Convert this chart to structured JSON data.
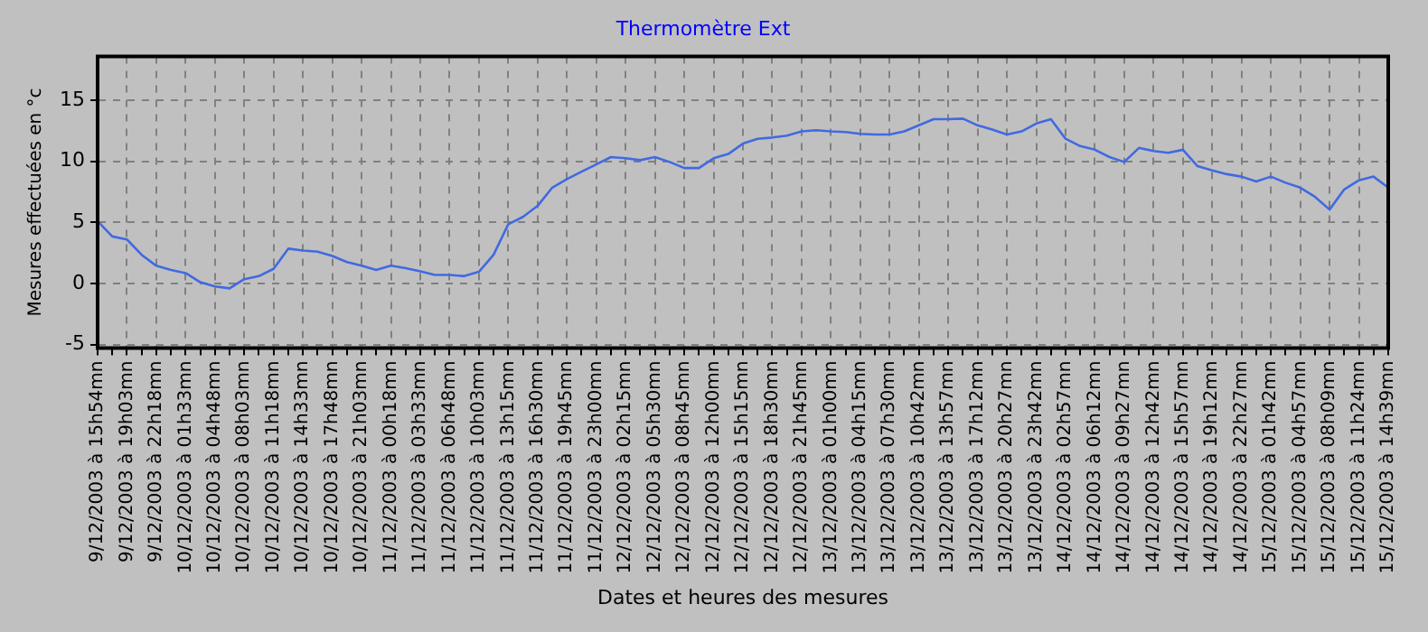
{
  "chart_data": {
    "type": "line",
    "title": "Thermomètre Ext",
    "xlabel": "Dates et heures des mesures",
    "ylabel": "Mesures effectuées en °c",
    "categories": [
      "9/12/2003 à 15h54mn",
      null,
      "9/12/2003 à 19h03mn",
      null,
      "9/12/2003 à 22h18mn",
      null,
      "10/12/2003 à 01h33mn",
      null,
      "10/12/2003 à 04h48mn",
      null,
      "10/12/2003 à 08h03mn",
      null,
      "10/12/2003 à 11h18mn",
      null,
      "10/12/2003 à 14h33mn",
      null,
      "10/12/2003 à 17h48mn",
      null,
      "10/12/2003 à 21h03mn",
      null,
      "11/12/2003 à 00h18mn",
      null,
      "11/12/2003 à 03h33mn",
      null,
      "11/12/2003 à 06h48mn",
      null,
      "11/12/2003 à 10h03mn",
      null,
      "11/12/2003 à 13h15mn",
      null,
      "11/12/2003 à 16h30mn",
      null,
      "11/12/2003 à 19h45mn",
      null,
      "11/12/2003 à 23h00mn",
      null,
      "12/12/2003 à 02h15mn",
      null,
      "12/12/2003 à 05h30mn",
      null,
      "12/12/2003 à 08h45mn",
      null,
      "12/12/2003 à 12h00mn",
      null,
      "12/12/2003 à 15h15mn",
      null,
      "12/12/2003 à 18h30mn",
      null,
      "12/12/2003 à 21h45mn",
      null,
      "13/12/2003 à 01h00mn",
      null,
      "13/12/2003 à 04h15mn",
      null,
      "13/12/2003 à 07h30mn",
      null,
      "13/12/2003 à 10h42mn",
      null,
      "13/12/2003 à 13h57mn",
      null,
      "13/12/2003 à 17h12mn",
      null,
      "13/12/2003 à 20h27mn",
      null,
      "13/12/2003 à 23h42mn",
      null,
      "14/12/2003 à 02h57mn",
      null,
      "14/12/2003 à 06h12mn",
      null,
      "14/12/2003 à 09h27mn",
      null,
      "14/12/2003 à 12h42mn",
      null,
      "14/12/2003 à 15h57mn",
      null,
      "14/12/2003 à 19h12mn",
      null,
      "14/12/2003 à 22h27mn",
      null,
      "15/12/2003 à 01h42mn",
      null,
      "15/12/2003 à 04h57mn",
      null,
      "15/12/2003 à 08h09mn",
      null,
      "15/12/2003 à 11h24mn",
      null,
      "15/12/2003 à 14h39mn"
    ],
    "series": [
      {
        "color": "#4169e1",
        "values": [
          5.1,
          3.85,
          3.6,
          2.35,
          1.45,
          1.1,
          0.85,
          0.1,
          -0.25,
          -0.4,
          0.35,
          0.6,
          1.2,
          2.85,
          2.7,
          2.6,
          2.25,
          1.75,
          1.45,
          1.1,
          1.45,
          1.25,
          1.0,
          0.7,
          0.7,
          0.6,
          0.95,
          2.35,
          4.85,
          5.45,
          6.35,
          7.85,
          8.55,
          9.15,
          9.75,
          10.35,
          10.25,
          10.1,
          10.35,
          9.95,
          9.45,
          9.45,
          10.25,
          10.6,
          11.45,
          11.85,
          11.95,
          12.1,
          12.45,
          12.55,
          12.45,
          12.4,
          12.25,
          12.2,
          12.2,
          12.45,
          12.95,
          13.45,
          13.45,
          13.5,
          12.95,
          12.6,
          12.2,
          12.45,
          13.1,
          13.45,
          11.85,
          11.25,
          10.95,
          10.35,
          9.95,
          11.1,
          10.85,
          10.7,
          10.95,
          9.6,
          9.25,
          8.95,
          8.75,
          8.35,
          8.75,
          8.25,
          7.85,
          7.1,
          6.05,
          7.7,
          8.45,
          8.75,
          7.85
        ]
      }
    ],
    "ylim": [
      -5.3,
      18.6
    ],
    "yticks": [
      -5,
      0,
      5,
      10,
      15
    ],
    "grid": true,
    "legend": false
  }
}
